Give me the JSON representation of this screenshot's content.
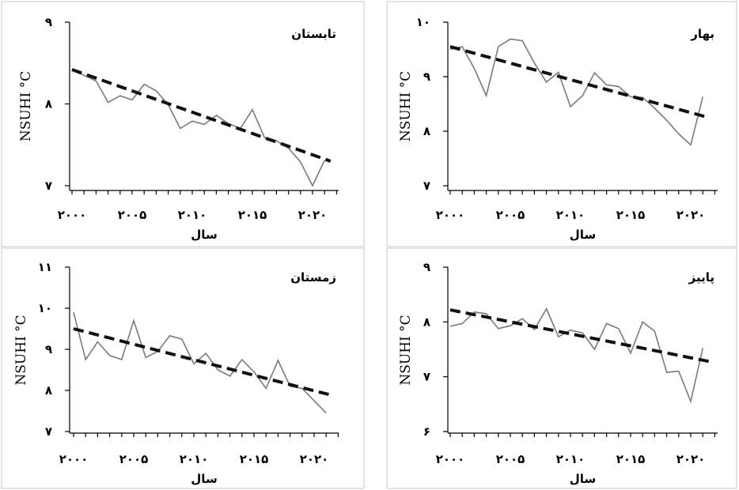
{
  "colors": {
    "series": "#7a7a7a",
    "trend": "#111111",
    "panel_border": "#c9c9c9"
  },
  "chart_data": [
    {
      "type": "line",
      "title": "تابستان",
      "xlabel": "سال",
      "ylabel": "NSUHI °C",
      "xlim": [
        2000,
        2022
      ],
      "ylim": [
        7,
        9
      ],
      "x_ticks": [
        2000,
        2005,
        2010,
        2015,
        2020
      ],
      "x_tick_labels": [
        "۲۰۰۰",
        "۲۰۰۵",
        "۲۰۱۰",
        "۲۰۱۵",
        "۲۰۲۰"
      ],
      "y_ticks": [
        7,
        8,
        9
      ],
      "y_tick_labels": [
        "۷",
        "۸",
        "۹"
      ],
      "x": [
        2000,
        2001,
        2002,
        2003,
        2004,
        2005,
        2006,
        2007,
        2008,
        2009,
        2010,
        2011,
        2012,
        2013,
        2014,
        2015,
        2016,
        2017,
        2018,
        2019,
        2020,
        2021
      ],
      "values": [
        8.41,
        8.35,
        8.28,
        8.02,
        8.1,
        8.05,
        8.24,
        8.16,
        7.99,
        7.7,
        7.79,
        7.75,
        7.86,
        7.76,
        7.7,
        7.93,
        7.59,
        7.55,
        7.46,
        7.29,
        7.0,
        7.31
      ],
      "trend": {
        "x": [
          2000,
          2021.5
        ],
        "values": [
          8.42,
          7.3
        ]
      }
    },
    {
      "type": "line",
      "title": "بهار",
      "xlabel": "سال",
      "ylabel": "NSUHI °C",
      "xlim": [
        2000,
        2022
      ],
      "ylim": [
        7,
        10
      ],
      "x_ticks": [
        2000,
        2005,
        2010,
        2015,
        2020
      ],
      "x_tick_labels": [
        "۲۰۰۰",
        "۲۰۰۵",
        "۲۰۱۰",
        "۲۰۱۵",
        "۲۰۲۰"
      ],
      "y_ticks": [
        7,
        8,
        9,
        10
      ],
      "y_tick_labels": [
        "۷",
        "۸",
        "۹",
        "۱۰"
      ],
      "x": [
        2000,
        2001,
        2002,
        2003,
        2004,
        2005,
        2006,
        2007,
        2008,
        2009,
        2010,
        2011,
        2012,
        2013,
        2014,
        2015,
        2016,
        2017,
        2018,
        2019,
        2020,
        2021
      ],
      "values": [
        9.5,
        9.55,
        9.15,
        8.65,
        9.55,
        9.69,
        9.66,
        9.25,
        8.9,
        9.08,
        8.45,
        8.65,
        9.07,
        8.85,
        8.82,
        8.63,
        8.62,
        8.42,
        8.2,
        7.95,
        7.75,
        8.63
      ],
      "trend": {
        "x": [
          2000,
          2021.5
        ],
        "values": [
          9.55,
          8.25
        ]
      }
    },
    {
      "type": "line",
      "title": "زمستان",
      "xlabel": "سال",
      "ylabel": "NSUHI °C",
      "xlim": [
        2000,
        2022
      ],
      "ylim": [
        7,
        11
      ],
      "x_ticks": [
        2000,
        2005,
        2010,
        2015,
        2020
      ],
      "x_tick_labels": [
        "۲۰۰۰",
        "۲۰۰۵",
        "۲۰۱۰",
        "۲۰۱۵",
        "۲۰۲۰"
      ],
      "y_ticks": [
        7,
        8,
        9,
        10,
        11
      ],
      "y_tick_labels": [
        "۷",
        "۸",
        "۹",
        "۱۰",
        "۱۱"
      ],
      "x": [
        2000,
        2001,
        2002,
        2003,
        2004,
        2005,
        2006,
        2007,
        2008,
        2009,
        2010,
        2011,
        2012,
        2013,
        2014,
        2015,
        2016,
        2017,
        2018,
        2019,
        2020,
        2021
      ],
      "values": [
        9.9,
        8.75,
        9.18,
        8.85,
        8.75,
        9.7,
        8.8,
        8.95,
        9.33,
        9.25,
        8.65,
        8.9,
        8.5,
        8.35,
        8.75,
        8.45,
        8.05,
        8.73,
        8.1,
        8.05,
        7.75,
        7.45
      ],
      "trend": {
        "x": [
          2000,
          2021.5
        ],
        "values": [
          9.5,
          7.88
        ]
      }
    },
    {
      "type": "line",
      "title": "پاییز",
      "xlabel": "سال",
      "ylabel": "NSUHI °C",
      "xlim": [
        2000,
        2022
      ],
      "ylim": [
        6,
        9
      ],
      "x_ticks": [
        2000,
        2005,
        2010,
        2015,
        2020
      ],
      "x_tick_labels": [
        "۲۰۰۰",
        "۲۰۰۵",
        "۲۰۱۰",
        "۲۰۱۵",
        "۲۰۲۰"
      ],
      "y_ticks": [
        6,
        7,
        8,
        9
      ],
      "y_tick_labels": [
        "۶",
        "۷",
        "۸",
        "۹"
      ],
      "x": [
        2000,
        2001,
        2002,
        2003,
        2004,
        2005,
        2006,
        2007,
        2008,
        2009,
        2010,
        2011,
        2012,
        2013,
        2014,
        2015,
        2016,
        2017,
        2018,
        2019,
        2020,
        2021
      ],
      "values": [
        7.92,
        7.97,
        8.18,
        8.15,
        7.88,
        7.93,
        8.06,
        7.86,
        8.24,
        7.73,
        7.85,
        7.8,
        7.5,
        7.97,
        7.88,
        7.43,
        8.0,
        7.83,
        7.08,
        7.1,
        6.55,
        7.52
      ],
      "trend": {
        "x": [
          2000,
          2021.5
        ],
        "values": [
          8.22,
          7.28
        ]
      }
    }
  ]
}
